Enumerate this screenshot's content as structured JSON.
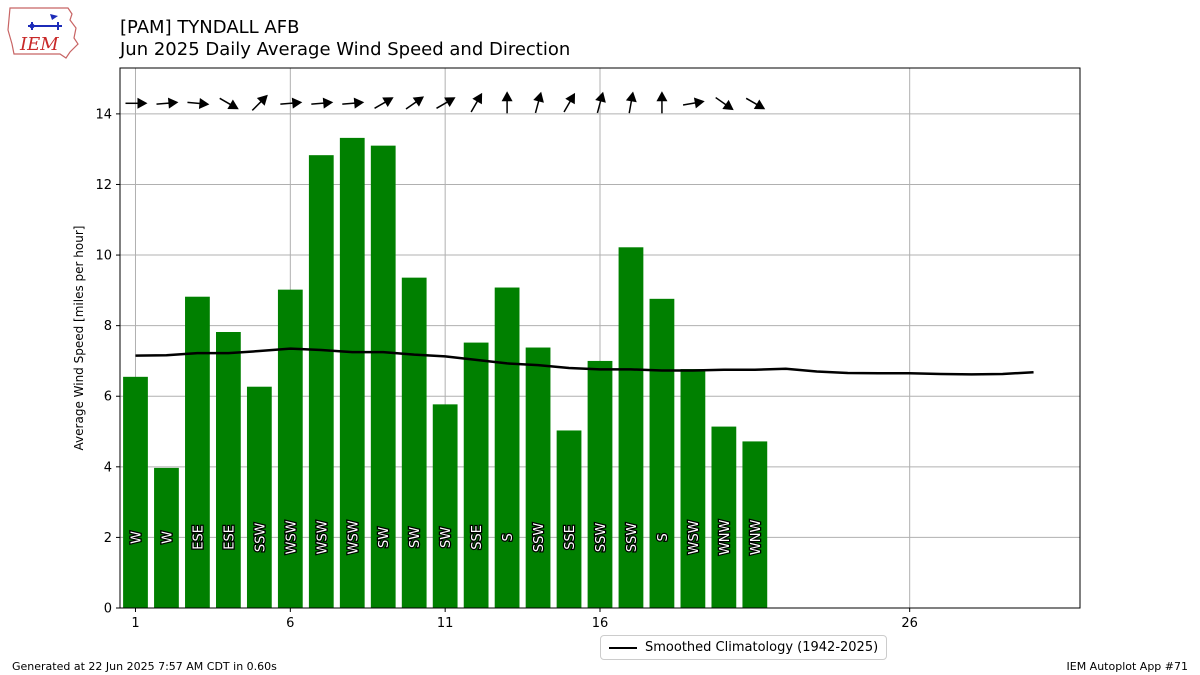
{
  "header": {
    "title": "[PAM] TYNDALL AFB",
    "subtitle": "Jun 2025 Daily Average Wind Speed and Direction"
  },
  "logo": {
    "text": "IEM",
    "icon": "iowa-state-outline-icon"
  },
  "footer": {
    "generated": "Generated at 22 Jun 2025 7:57 AM CDT in 0.60s",
    "app": "IEM Autoplot App #71"
  },
  "chart_data": {
    "type": "bar",
    "ylabel": "Average Wind Speed [miles per hour]",
    "xlabel": "",
    "xlim": [
      0.5,
      31.5
    ],
    "ylim": [
      0,
      15.3
    ],
    "xticks": [
      1,
      6,
      11,
      16,
      26
    ],
    "yticks": [
      0,
      2,
      4,
      6,
      8,
      10,
      12,
      14
    ],
    "grid": true,
    "bar_color": "#008000",
    "days": [
      1,
      2,
      3,
      4,
      5,
      6,
      7,
      8,
      9,
      10,
      11,
      12,
      13,
      14,
      15,
      16,
      17,
      18,
      19,
      20,
      21
    ],
    "values": [
      6.55,
      3.97,
      8.82,
      7.82,
      6.27,
      9.02,
      12.83,
      13.32,
      13.1,
      9.36,
      5.77,
      7.52,
      9.08,
      7.38,
      5.03,
      7.0,
      10.22,
      8.76,
      6.77,
      5.14,
      4.72
    ],
    "directions": [
      "W",
      "W",
      "ESE",
      "ESE",
      "SSW",
      "WSW",
      "WSW",
      "WSW",
      "SW",
      "SW",
      "SW",
      "SSE",
      "S",
      "SSW",
      "SSE",
      "SSW",
      "SSW",
      "S",
      "WSW",
      "WNW",
      "WNW"
    ],
    "arrow_angles_deg": [
      0,
      5,
      -5,
      -30,
      45,
      5,
      5,
      5,
      30,
      35,
      30,
      60,
      90,
      75,
      60,
      75,
      80,
      90,
      10,
      -35,
      -30
    ],
    "arrow_y": 14.3,
    "climatology": {
      "name": "Smoothed Climatology (1942-2025)",
      "x": [
        1,
        2,
        3,
        4,
        5,
        6,
        7,
        8,
        9,
        10,
        11,
        12,
        13,
        14,
        15,
        16,
        17,
        18,
        19,
        20,
        21,
        22,
        23,
        24,
        25,
        26,
        27,
        28,
        29,
        30
      ],
      "y": [
        7.15,
        7.16,
        7.22,
        7.22,
        7.28,
        7.35,
        7.31,
        7.25,
        7.25,
        7.18,
        7.13,
        7.03,
        6.93,
        6.88,
        6.8,
        6.76,
        6.76,
        6.73,
        6.73,
        6.75,
        6.75,
        6.78,
        6.7,
        6.66,
        6.65,
        6.65,
        6.63,
        6.62,
        6.63,
        6.68
      ],
      "color": "#000000"
    },
    "legend_position": "lower-center-outside"
  }
}
